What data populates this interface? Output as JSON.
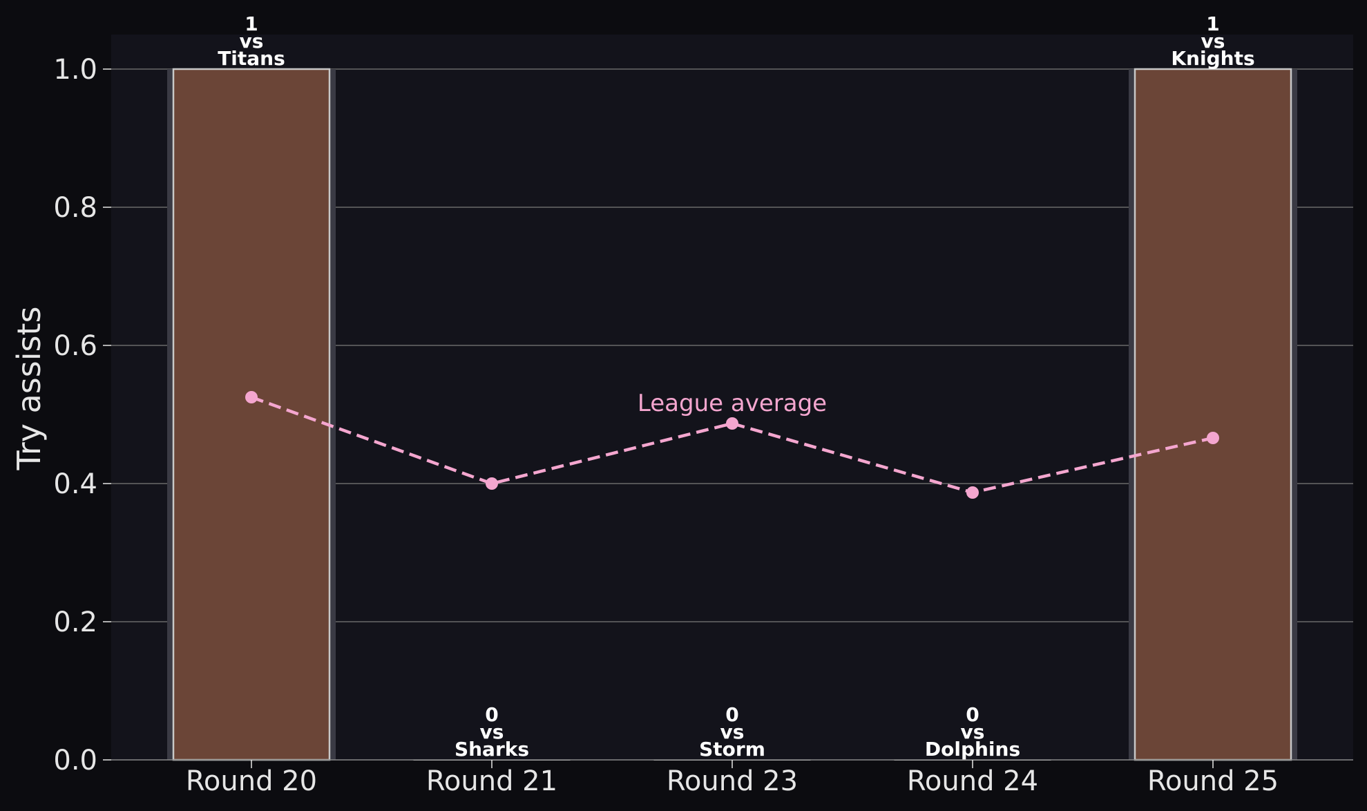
{
  "chart_data": {
    "type": "bar",
    "categories": [
      "Round 20",
      "Round 21",
      "Round 23",
      "Round 24",
      "Round 25"
    ],
    "values": [
      1,
      0,
      0,
      0,
      1
    ],
    "bar_labels": [
      [
        "1",
        "vs",
        "Titans"
      ],
      [
        "0",
        "vs",
        "Sharks"
      ],
      [
        "0",
        "vs",
        "Storm"
      ],
      [
        "0",
        "vs",
        "Dolphins"
      ],
      [
        "1",
        "vs",
        "Knights"
      ]
    ],
    "line": {
      "values": [
        0.525,
        0.4,
        0.487,
        0.387,
        0.466
      ],
      "annotation": "League average",
      "annotation_index": 2
    },
    "title": "",
    "xlabel": "",
    "ylabel": "Try assists",
    "ylim": [
      0,
      1.05
    ],
    "yticks": [
      "0.0",
      "0.2",
      "0.4",
      "0.6",
      "0.8",
      "1.0"
    ],
    "grid": "horizontal",
    "colors": {
      "figure_bg": "#0c0c10",
      "plot_bg": "#13131b",
      "bar_fill": "#6b4537",
      "bar_edge": "#c8c8c8",
      "bar_halo": "#3a3a44",
      "line": "#f4a6cf",
      "grid": "#6a6a6a",
      "text": "#e6e6e6"
    }
  }
}
